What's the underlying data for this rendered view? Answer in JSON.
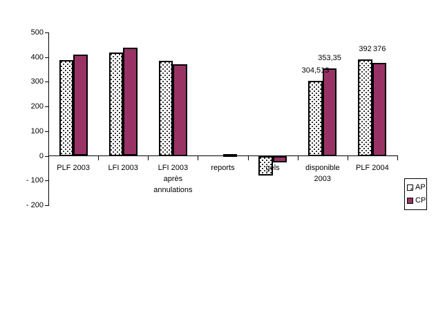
{
  "chart_data": {
    "type": "bar",
    "title": "",
    "xlabel": "",
    "ylabel": "",
    "categories": [
      "PLF 2003",
      "LFI 2003",
      "LFI 2003\naprès\nannulations",
      "reports",
      "gels",
      "disponible\n2003",
      "PLF 2004"
    ],
    "series": [
      {
        "name": "AP",
        "values": [
          388,
          418,
          385,
          0,
          -80,
          304.513,
          392
        ]
      },
      {
        "name": "CP",
        "values": [
          410,
          438,
          371,
          7,
          -26,
          353.35,
          376
        ]
      }
    ],
    "data_labels": [
      {
        "category_index": 5,
        "series_index": 0,
        "text": "304,513"
      },
      {
        "category_index": 5,
        "series_index": 1,
        "text": "353,35"
      },
      {
        "category_index": 6,
        "series_index": 0,
        "text": "392"
      },
      {
        "category_index": 6,
        "series_index": 1,
        "text": "376"
      }
    ],
    "y_ticks": [
      {
        "value": 500,
        "label": "500"
      },
      {
        "value": 400,
        "label": "400"
      },
      {
        "value": 300,
        "label": "300"
      },
      {
        "value": 200,
        "label": "200"
      },
      {
        "value": 100,
        "label": "100"
      },
      {
        "value": 0,
        "label": "0"
      },
      {
        "value": -100,
        "label": "- 100"
      },
      {
        "value": -200,
        "label": "- 200"
      }
    ],
    "ylim": [
      -200,
      500
    ],
    "grid": false,
    "legend_position": "bottom-right"
  },
  "legend": {
    "items": [
      {
        "label": "AP"
      },
      {
        "label": "CP"
      }
    ]
  },
  "colors": {
    "cp_fill": "#993366",
    "ap_fill": "#ffffff",
    "bar_border": "#000000",
    "axis": "#000000"
  }
}
